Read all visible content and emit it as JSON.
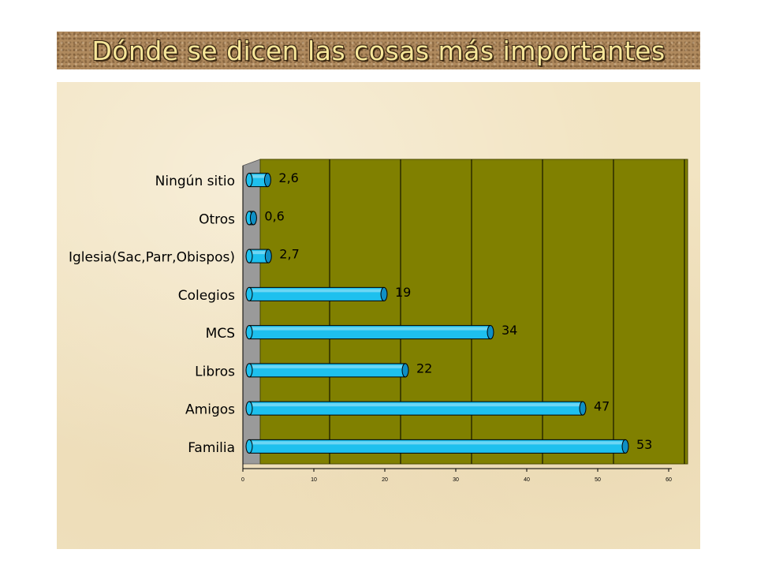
{
  "header": {
    "title": "Dónde se dicen las cosas más importantes"
  },
  "colors": {
    "plot_area": "#808000",
    "wall": "#9a9a9a",
    "bar_fill": "#1ec0ee",
    "bar_cap": "#0f8fc4",
    "gridline": "#000000"
  },
  "chart_data": {
    "type": "bar",
    "orientation": "horizontal",
    "style": "3d-cylinder",
    "categories": [
      "Ningún sitio",
      "Otros",
      "Iglesia(Sac,Parr,Obispos)",
      "Colegios",
      "MCS",
      "Libros",
      "Amigos",
      "Familia"
    ],
    "values": [
      2.6,
      0.6,
      2.7,
      19,
      34,
      22,
      47,
      53
    ],
    "value_labels": [
      "2,6",
      "0,6",
      "2,7",
      "19",
      "34",
      "22",
      "47",
      "53"
    ],
    "x_ticks": [
      0,
      10,
      20,
      30,
      40,
      50,
      60
    ],
    "xlim": [
      0,
      60
    ],
    "grid": true,
    "legend": "none"
  }
}
